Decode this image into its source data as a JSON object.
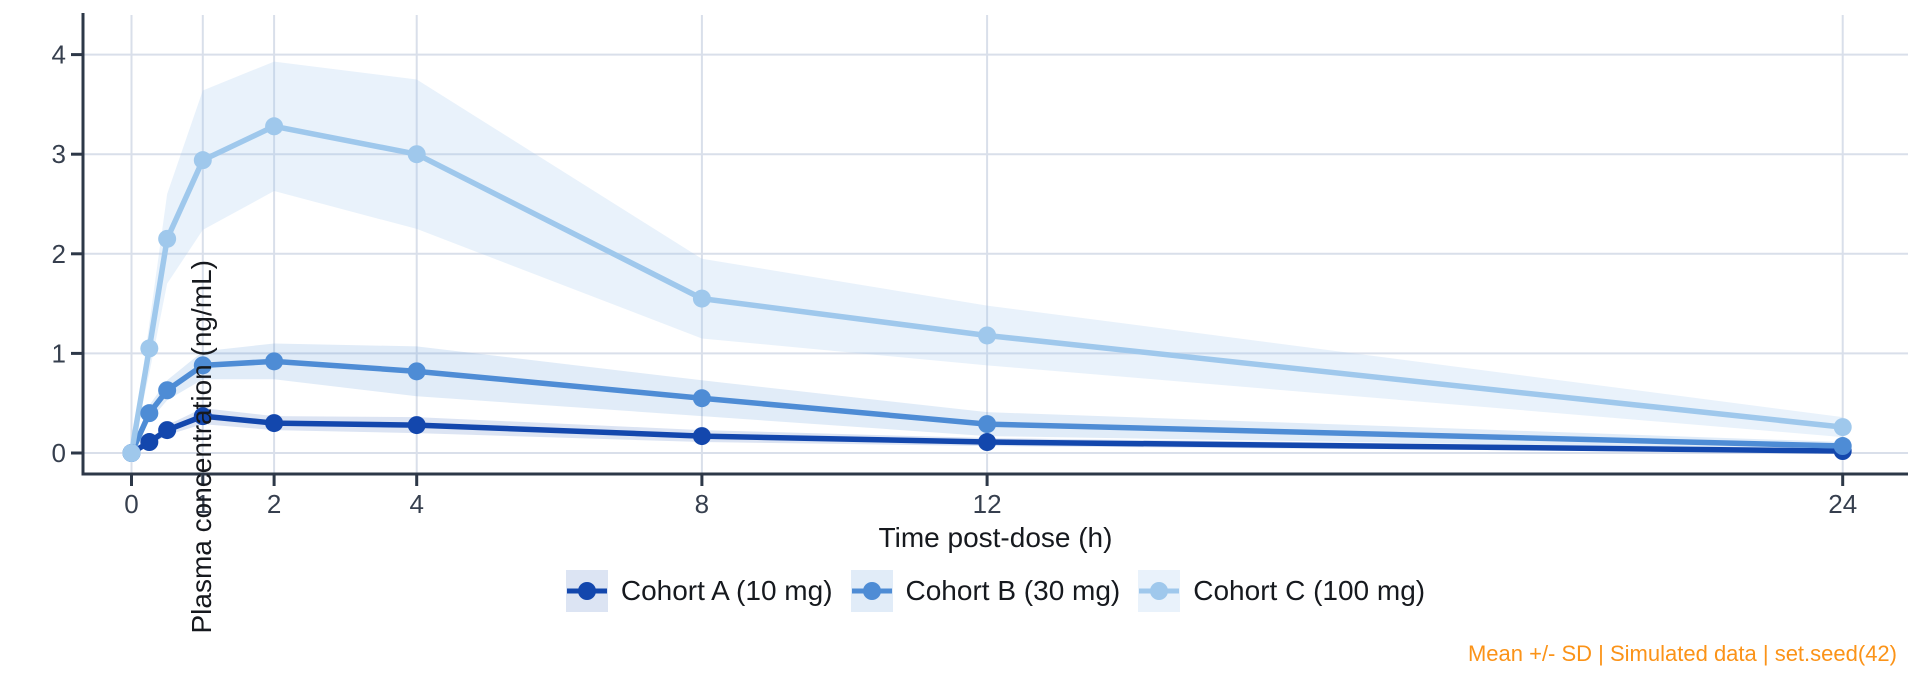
{
  "figure": {
    "axis_color": "#2d3848",
    "grid_color": "#d9dfea",
    "tick_text_color": "#363f4e",
    "title_text_color": "#16191e",
    "caption_color": "#fb9318",
    "background_color": "#ffffff"
  },
  "chart_data": {
    "type": "line",
    "title": "",
    "xlabel": "Time post-dose (h)",
    "ylabel": "Plasma concentration (ng/mL)",
    "caption": "Mean +/- SD | Simulated data | set.seed(42)",
    "band": "mean +/- SD ribbon",
    "grid": true,
    "legend_position": "bottom",
    "x": [
      0,
      0.25,
      0.5,
      1,
      2,
      4,
      8,
      12,
      24
    ],
    "x_ticks": [
      "0",
      "1",
      "2",
      "4",
      "8",
      "12",
      "24"
    ],
    "x_tick_values": [
      0,
      1,
      2,
      4,
      8,
      12,
      24
    ],
    "y_ticks": [
      "0",
      "1",
      "2",
      "3",
      "4"
    ],
    "y_tick_values": [
      0,
      1,
      2,
      3,
      4
    ],
    "xlim": [
      -0.7,
      24.9
    ],
    "ylim": [
      -0.2,
      4.4
    ],
    "series": [
      {
        "name": "Cohort A (10 mg)",
        "color": "#1347ad",
        "band_opacity": 0.15,
        "values": [
          0,
          0.11,
          0.23,
          0.37,
          0.3,
          0.28,
          0.17,
          0.11,
          0.02
        ],
        "sd": [
          0,
          0.03,
          0.05,
          0.08,
          0.07,
          0.08,
          0.06,
          0.04,
          0.02
        ]
      },
      {
        "name": "Cohort B (30 mg)",
        "color": "#4e8cd5",
        "band_opacity": 0.17,
        "values": [
          0,
          0.4,
          0.63,
          0.88,
          0.92,
          0.82,
          0.55,
          0.29,
          0.07
        ],
        "sd": [
          0,
          0.08,
          0.1,
          0.14,
          0.18,
          0.25,
          0.18,
          0.12,
          0.04
        ]
      },
      {
        "name": "Cohort C (100 mg)",
        "color": "#9fc8ec",
        "band_opacity": 0.23,
        "values": [
          0,
          1.05,
          2.15,
          2.94,
          3.28,
          3.0,
          1.55,
          1.18,
          0.26
        ],
        "sd": [
          0,
          0.25,
          0.45,
          0.7,
          0.65,
          0.75,
          0.4,
          0.3,
          0.1
        ]
      }
    ]
  }
}
